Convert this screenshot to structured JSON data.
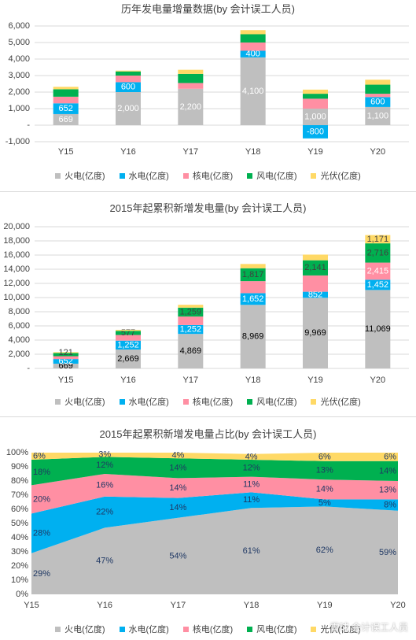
{
  "colors": {
    "thermal": "#bfbfbf",
    "hydro": "#00b0f0",
    "nuclear": "#ff8fa3",
    "wind": "#00b050",
    "solar": "#ffd966",
    "grid": "#d9d9d9",
    "axis_text": "#404040",
    "label_dark": "#404040",
    "label_white": "#ffffff",
    "label_navy": "#1f3864"
  },
  "series_names": [
    "火电(亿度)",
    "水电(亿度)",
    "核电(亿度)",
    "风电(亿度)",
    "光伏(亿度)"
  ],
  "watermark": "雪球 会计误工人员",
  "chart_data": [
    {
      "type": "bar",
      "stacked": true,
      "title": "历年发电量增量数据(by 会计误工人员)",
      "categories": [
        "Y15",
        "Y16",
        "Y17",
        "Y18",
        "Y19",
        "Y20"
      ],
      "ylim": [
        -1000,
        6000
      ],
      "yticks": [
        "-1,000",
        "-",
        "1,000",
        "2,000",
        "3,000",
        "4,000",
        "5,000",
        "6,000"
      ],
      "ytick_values": [
        -1000,
        0,
        1000,
        2000,
        3000,
        4000,
        5000,
        6000
      ],
      "grid": true,
      "legend_position": "bottom",
      "series": [
        {
          "name": "火电(亿度)",
          "values": [
            669,
            2000,
            2200,
            4100,
            1000,
            1100
          ],
          "labels": [
            "669",
            "2,000",
            "2,200",
            "4,100",
            "1,000",
            "1,100"
          ]
        },
        {
          "name": "水电(亿度)",
          "values": [
            652,
            600,
            0,
            400,
            -800,
            600
          ],
          "labels": [
            "652",
            "600",
            "-",
            "400",
            "-800",
            "600"
          ]
        },
        {
          "name": "核电(亿度)",
          "values": [
            400,
            400,
            350,
            500,
            600,
            200
          ],
          "labels": []
        },
        {
          "name": "风电(亿度)",
          "values": [
            450,
            250,
            550,
            500,
            300,
            550
          ],
          "labels": []
        },
        {
          "name": "光伏(亿度)",
          "values": [
            150,
            50,
            250,
            250,
            250,
            300
          ],
          "labels": []
        }
      ]
    },
    {
      "type": "bar",
      "stacked": true,
      "title": "2015年起累积新增发电量(by 会计误工人员)",
      "categories": [
        "Y15",
        "Y16",
        "Y17",
        "Y18",
        "Y19",
        "Y20"
      ],
      "ylim": [
        0,
        20000
      ],
      "yticks": [
        "-",
        "2,000",
        "4,000",
        "6,000",
        "8,000",
        "10,000",
        "12,000",
        "14,000",
        "16,000",
        "18,000",
        "20,000"
      ],
      "ytick_values": [
        0,
        2000,
        4000,
        6000,
        8000,
        10000,
        12000,
        14000,
        16000,
        18000,
        20000
      ],
      "grid": true,
      "legend_position": "bottom",
      "series": [
        {
          "name": "火电(亿度)",
          "values": [
            669,
            2669,
            4869,
            8969,
            9969,
            11069
          ],
          "labels": [
            "669",
            "2,669",
            "4,869",
            "8,969",
            "9,969",
            "11,069"
          ]
        },
        {
          "name": "水电(亿度)",
          "values": [
            652,
            1252,
            1252,
            1652,
            852,
            1452
          ],
          "labels": [
            "652",
            "1,252",
            "1,252",
            "1,652",
            "852",
            "1,452"
          ]
        },
        {
          "name": "核电(亿度)",
          "values": [
            400,
            800,
            1200,
            1700,
            2300,
            2415
          ],
          "labels": [
            "",
            "",
            "",
            "",
            "",
            "2,415"
          ]
        },
        {
          "name": "风电(亿度)",
          "values": [
            450,
            577,
            1259,
            1817,
            2141,
            2716
          ],
          "labels": [
            "",
            "577",
            "1,259",
            "1,817",
            "2,141",
            "2,716"
          ]
        },
        {
          "name": "光伏(亿度)",
          "values": [
            121,
            150,
            400,
            600,
            800,
            1171
          ],
          "labels": [
            "121",
            "",
            "",
            "",
            "",
            "1,171"
          ]
        }
      ]
    },
    {
      "type": "area",
      "stacked": true,
      "title": "2015年起累积新增发电量占比(by 会计误工人员)",
      "categories": [
        "Y15",
        "Y16",
        "Y17",
        "Y18",
        "Y19",
        "Y20"
      ],
      "ylim": [
        0,
        100
      ],
      "yticks": [
        "0%",
        "10%",
        "20%",
        "30%",
        "40%",
        "50%",
        "60%",
        "70%",
        "80%",
        "90%",
        "100%"
      ],
      "ytick_values": [
        0,
        10,
        20,
        30,
        40,
        50,
        60,
        70,
        80,
        90,
        100
      ],
      "grid": false,
      "legend_position": "bottom",
      "series": [
        {
          "name": "火电(亿度)",
          "values": [
            29,
            47,
            54,
            61,
            62,
            59
          ],
          "labels": [
            "29%",
            "47%",
            "54%",
            "61%",
            "62%",
            "59%"
          ]
        },
        {
          "name": "水电(亿度)",
          "values": [
            28,
            22,
            14,
            11,
            5,
            8
          ],
          "labels": [
            "28%",
            "22%",
            "14%",
            "11%",
            "5%",
            "8%"
          ]
        },
        {
          "name": "核电(亿度)",
          "values": [
            20,
            16,
            14,
            11,
            14,
            13
          ],
          "labels": [
            "20%",
            "16%",
            "14%",
            "11%",
            "14%",
            "13%"
          ]
        },
        {
          "name": "风电(亿度)",
          "values": [
            18,
            12,
            14,
            12,
            13,
            14
          ],
          "labels": [
            "18%",
            "12%",
            "14%",
            "12%",
            "13%",
            "14%"
          ]
        },
        {
          "name": "光伏(亿度)",
          "values": [
            6,
            3,
            4,
            4,
            6,
            6
          ],
          "labels": [
            "6%",
            "3%",
            "4%",
            "4%",
            "6%",
            "6%"
          ]
        }
      ]
    }
  ]
}
